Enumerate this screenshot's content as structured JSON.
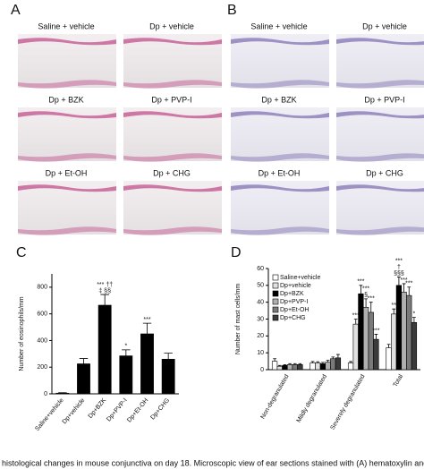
{
  "panel_labels": [
    "A",
    "B",
    "C",
    "D"
  ],
  "image_labels": {
    "A": [
      "Saline + vehicle",
      "Dp + vehicle",
      "Dp + BZK",
      "Dp + PVP-I",
      "Dp + Et-OH",
      "Dp + CHG"
    ],
    "B": [
      "Saline + vehicle",
      "Dp + vehicle",
      "Dp + BZK",
      "Dp + PVP-I",
      "Dp + Et-OH",
      "Dp + CHG"
    ]
  },
  "caption": "histological changes in mouse conjunctiva on day 18. Microscopic view of ear sections stained with (A) hematoxylin and eos",
  "chart_data": [
    {
      "type": "bar",
      "y_label": "Number of eosinophils/mm",
      "categories": [
        "Saline+vehicle",
        "Dp+vehicle",
        "Dp+BZK",
        "Dp+PVP-I",
        "Dp+Et-OH",
        "Dp+CHG"
      ],
      "values": [
        5,
        225,
        665,
        285,
        450,
        260
      ],
      "errors": [
        3,
        40,
        80,
        45,
        80,
        45
      ],
      "notes": [
        null,
        null,
        [
          "*** ††",
          "‡ §§"
        ],
        [
          "*"
        ],
        [
          "***"
        ],
        null
      ],
      "color": "#000000",
      "ylim": [
        0,
        900
      ],
      "yticks": [
        0,
        200,
        400,
        600,
        800
      ]
    },
    {
      "type": "grouped-bar",
      "y_label": "Number of mast cells/mm",
      "categories": [
        "Non-degranulated",
        "Mildly degranulated",
        "Severely degranulated",
        "Total"
      ],
      "series": [
        {
          "name": "Saline+vehicle",
          "color": "#ffffff",
          "values": [
            5,
            4,
            4,
            13
          ],
          "errors": [
            1.5,
            0.8,
            0.8,
            2
          ],
          "notes": [
            null,
            null,
            null,
            null
          ]
        },
        {
          "name": "Dp+vehicle",
          "color": "#e0e0e0",
          "values": [
            2,
            4,
            27,
            33
          ],
          "errors": [
            0.5,
            0.7,
            3,
            3
          ],
          "notes": [
            null,
            null,
            [
              "***"
            ],
            [
              "**"
            ]
          ]
        },
        {
          "name": "Dp+BZK",
          "color": "#000000",
          "values": [
            2.5,
            3.5,
            45,
            50
          ],
          "errors": [
            0.5,
            0.8,
            5,
            5
          ],
          "notes": [
            null,
            null,
            [
              "***"
            ],
            [
              "***",
              "†",
              "§§§"
            ]
          ]
        },
        {
          "name": "Dp+PVP-I",
          "color": "#b0b0b0",
          "values": [
            3,
            4.5,
            37,
            46
          ],
          "errors": [
            0.6,
            1,
            5,
            5
          ],
          "notes": [
            null,
            null,
            [
              "***",
              "§"
            ],
            [
              "***"
            ]
          ]
        },
        {
          "name": "Dp+Et-OH",
          "color": "#7a7a7a",
          "values": [
            3,
            6.5,
            34,
            44
          ],
          "errors": [
            0.6,
            1,
            6,
            5
          ],
          "notes": [
            null,
            null,
            [
              "***"
            ],
            [
              "***"
            ]
          ]
        },
        {
          "name": "Dp+CHG",
          "color": "#3a3a3a",
          "values": [
            3,
            7,
            18,
            28
          ],
          "errors": [
            0.6,
            2,
            3,
            3
          ],
          "notes": [
            null,
            null,
            [
              "***"
            ],
            [
              "*"
            ]
          ]
        }
      ],
      "ylim": [
        0,
        60
      ],
      "yticks": [
        0,
        10,
        20,
        30,
        40,
        50,
        60
      ],
      "legend": "upper left"
    }
  ]
}
